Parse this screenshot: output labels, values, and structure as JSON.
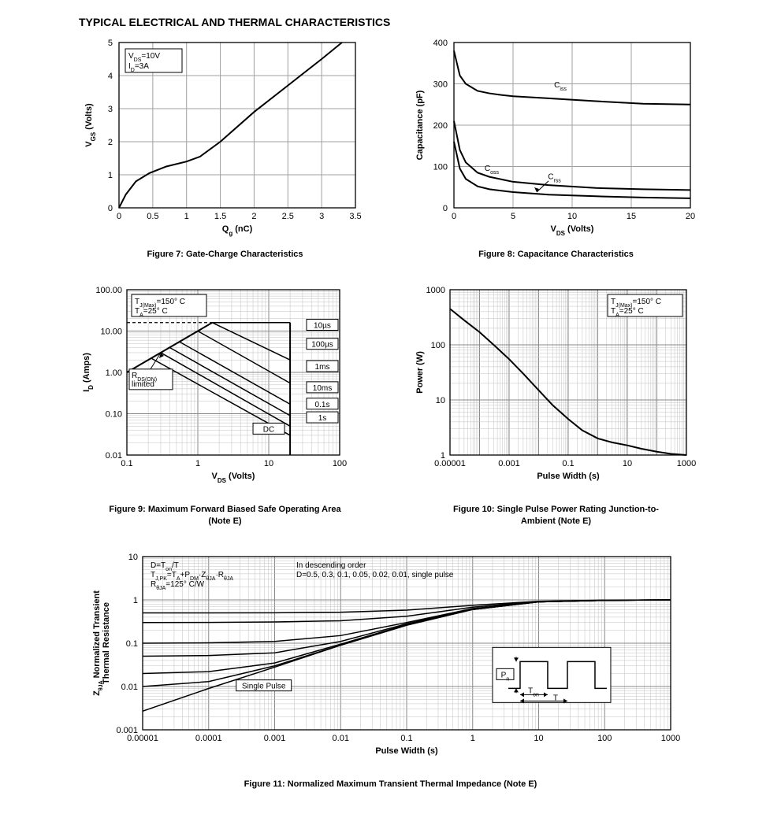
{
  "page": {
    "title": "TYPICAL ELECTRICAL AND THERMAL CHARACTERISTICS"
  },
  "fig7": {
    "type": "line",
    "caption": "Figure 7: Gate-Charge Characteristics",
    "xlabel": "Qg (nC)",
    "ylabel": "VGS (Volts)",
    "xlim": [
      0,
      3.5
    ],
    "ylim": [
      0,
      5
    ],
    "xticks": [
      0,
      0.5,
      1,
      1.5,
      2,
      2.5,
      3,
      3.5
    ],
    "yticks": [
      0,
      1,
      2,
      3,
      4,
      5
    ],
    "annotation": [
      "VDS=10V",
      "ID=3A"
    ],
    "curve": [
      [
        0,
        0
      ],
      [
        0.1,
        0.4
      ],
      [
        0.25,
        0.8
      ],
      [
        0.45,
        1.05
      ],
      [
        0.7,
        1.25
      ],
      [
        1.0,
        1.4
      ],
      [
        1.2,
        1.55
      ],
      [
        1.5,
        2.0
      ],
      [
        2.0,
        2.9
      ],
      [
        2.5,
        3.7
      ],
      [
        3.0,
        4.5
      ],
      [
        3.3,
        5.0
      ]
    ],
    "colors": {
      "bg": "#ffffff",
      "grid": "#a0a0a0",
      "curve": "#000000",
      "text": "#000000"
    }
  },
  "fig8": {
    "type": "line",
    "caption": "Figure 8: Capacitance Characteristics",
    "xlabel": "VDS (Volts)",
    "ylabel": "Capacitance (pF)",
    "xlim": [
      0,
      20
    ],
    "ylim": [
      0,
      400
    ],
    "xticks": [
      0,
      5,
      10,
      15,
      20
    ],
    "yticks": [
      0,
      100,
      200,
      300,
      400
    ],
    "series": {
      "Ciss": [
        [
          0,
          380
        ],
        [
          0.5,
          320
        ],
        [
          1,
          300
        ],
        [
          2,
          283
        ],
        [
          3,
          277
        ],
        [
          4,
          273
        ],
        [
          5,
          270
        ],
        [
          8,
          265
        ],
        [
          12,
          258
        ],
        [
          16,
          252
        ],
        [
          20,
          250
        ]
      ],
      "Coss": [
        [
          0,
          210
        ],
        [
          0.5,
          140
        ],
        [
          1,
          110
        ],
        [
          2,
          85
        ],
        [
          3,
          75
        ],
        [
          5,
          63
        ],
        [
          8,
          55
        ],
        [
          12,
          48
        ],
        [
          16,
          45
        ],
        [
          20,
          43
        ]
      ],
      "Crss": [
        [
          0,
          160
        ],
        [
          0.5,
          95
        ],
        [
          1,
          70
        ],
        [
          2,
          52
        ],
        [
          3,
          45
        ],
        [
          5,
          38
        ],
        [
          8,
          32
        ],
        [
          12,
          28
        ],
        [
          16,
          25
        ],
        [
          20,
          23
        ]
      ]
    },
    "labels": {
      "Ciss": "Ciss",
      "Coss": "Coss",
      "Crss": "Crss"
    },
    "colors": {
      "bg": "#ffffff",
      "grid": "#a0a0a0",
      "curve": "#000000",
      "text": "#000000"
    }
  },
  "fig9": {
    "type": "loglog",
    "caption": "Figure 9: Maximum Forward Biased Safe Operating Area (Note E)",
    "xlabel": "VDS (Volts)",
    "ylabel": "ID (Amps)",
    "xlim": [
      0.1,
      100
    ],
    "ylim": [
      0.01,
      100
    ],
    "xticks": [
      0.1,
      1,
      10,
      100
    ],
    "yticks": [
      0.01,
      0.1,
      1,
      10,
      100
    ],
    "ytick_labels": [
      "0.01",
      "0.10",
      "1.00",
      "10.00",
      "100.00"
    ],
    "annotation": [
      "TJ(Max)=150° C",
      "TA=25° C"
    ],
    "rds_label": "RDS(ON) limited",
    "pulse_labels": [
      "10µs",
      "100µs",
      "1ms",
      "10ms",
      "0.1s",
      "1s",
      "DC"
    ],
    "rds_line": [
      [
        0.1,
        1.0
      ],
      [
        1.6,
        16
      ]
    ],
    "vmax": 20,
    "curves": {
      "10us": [
        [
          1.6,
          16
        ],
        [
          20,
          16
        ]
      ],
      "100us": [
        [
          1.6,
          16
        ],
        [
          20,
          2.0
        ]
      ],
      "1ms": [
        [
          1.0,
          10
        ],
        [
          20,
          0.55
        ]
      ],
      "10ms": [
        [
          0.55,
          5.5
        ],
        [
          20,
          0.17
        ]
      ],
      "0.1s": [
        [
          0.4,
          4.0
        ],
        [
          20,
          0.09
        ]
      ],
      "1s": [
        [
          0.3,
          3.0
        ],
        [
          20,
          0.05
        ]
      ],
      "DC": [
        [
          0.22,
          2.2
        ],
        [
          20,
          0.03
        ]
      ]
    },
    "colors": {
      "bg": "#ffffff",
      "grid": "#a0a0a0",
      "curve": "#000000",
      "text": "#000000"
    }
  },
  "fig10": {
    "type": "loglog",
    "caption": "Figure 10: Single Pulse Power Rating Junction-to-Ambient (Note E)",
    "xlabel": "Pulse Width (s)",
    "ylabel": "Power (W)",
    "xlim": [
      1e-05,
      1000
    ],
    "ylim": [
      1,
      1000
    ],
    "xticks": [
      1e-05,
      0.001,
      0.1,
      10,
      1000
    ],
    "xtick_labels": [
      "0.00001",
      "0.001",
      "0.1",
      "10",
      "1000"
    ],
    "yticks": [
      1,
      10,
      100,
      1000
    ],
    "annotation": [
      "TJ(Max)=150° C",
      "TA=25° C"
    ],
    "curve": [
      [
        1e-05,
        450
      ],
      [
        3e-05,
        280
      ],
      [
        0.0001,
        170
      ],
      [
        0.0003,
        100
      ],
      [
        0.001,
        55
      ],
      [
        0.003,
        30
      ],
      [
        0.01,
        15
      ],
      [
        0.03,
        8
      ],
      [
        0.1,
        4.5
      ],
      [
        0.3,
        2.8
      ],
      [
        1,
        2.0
      ],
      [
        3,
        1.7
      ],
      [
        10,
        1.5
      ],
      [
        30,
        1.3
      ],
      [
        100,
        1.15
      ],
      [
        300,
        1.05
      ],
      [
        1000,
        1.0
      ]
    ],
    "colors": {
      "bg": "#ffffff",
      "grid": "#a0a0a0",
      "curve": "#000000",
      "text": "#000000"
    }
  },
  "fig11": {
    "type": "loglog",
    "caption": "Figure 11: Normalized Maximum Transient Thermal Impedance (Note E)",
    "xlabel": "Pulse Width (s)",
    "ylabel": "ZθJA Normalized Transient Thermal Resistance",
    "xlim": [
      1e-05,
      1000
    ],
    "ylim": [
      0.001,
      10
    ],
    "xticks": [
      1e-05,
      0.0001,
      0.001,
      0.01,
      0.1,
      1,
      10,
      100,
      1000
    ],
    "xtick_labels": [
      "0.00001",
      "0.0001",
      "0.001",
      "0.01",
      "0.1",
      "1",
      "10",
      "100",
      "1000"
    ],
    "yticks": [
      0.001,
      0.01,
      0.1,
      1,
      10
    ],
    "annotation_left": [
      "D=Ton/T",
      "TJ,PK=TA+PDM·ZθJA·RθJA",
      "RθJA=125° C/W"
    ],
    "annotation_right": [
      "In descending order",
      "D=0.5, 0.3, 0.1, 0.05, 0.02, 0.01, single pulse"
    ],
    "single_pulse_label": "Single Pulse",
    "duty_values": [
      0.5,
      0.3,
      0.1,
      0.05,
      0.02,
      0.01
    ],
    "curves": {
      "single": [
        [
          1e-05,
          0.0027
        ],
        [
          0.0001,
          0.009
        ],
        [
          0.001,
          0.028
        ],
        [
          0.01,
          0.09
        ],
        [
          0.1,
          0.26
        ],
        [
          1,
          0.6
        ],
        [
          10,
          0.9
        ],
        [
          100,
          0.98
        ],
        [
          1000,
          1.0
        ]
      ],
      "d001": [
        [
          1e-05,
          0.01
        ],
        [
          0.0001,
          0.013
        ],
        [
          0.001,
          0.03
        ],
        [
          0.01,
          0.09
        ],
        [
          0.1,
          0.26
        ],
        [
          1,
          0.6
        ],
        [
          10,
          0.9
        ],
        [
          100,
          0.98
        ],
        [
          1000,
          1.0
        ]
      ],
      "d002": [
        [
          1e-05,
          0.02
        ],
        [
          0.0001,
          0.022
        ],
        [
          0.001,
          0.035
        ],
        [
          0.01,
          0.095
        ],
        [
          0.1,
          0.27
        ],
        [
          1,
          0.6
        ],
        [
          10,
          0.9
        ],
        [
          100,
          0.98
        ],
        [
          1000,
          1.0
        ]
      ],
      "d005": [
        [
          1e-05,
          0.05
        ],
        [
          0.0001,
          0.052
        ],
        [
          0.001,
          0.06
        ],
        [
          0.01,
          0.11
        ],
        [
          0.1,
          0.28
        ],
        [
          1,
          0.62
        ],
        [
          10,
          0.9
        ],
        [
          100,
          0.98
        ],
        [
          1000,
          1.0
        ]
      ],
      "d01": [
        [
          1e-05,
          0.1
        ],
        [
          0.0001,
          0.102
        ],
        [
          0.001,
          0.11
        ],
        [
          0.01,
          0.15
        ],
        [
          0.1,
          0.3
        ],
        [
          1,
          0.63
        ],
        [
          10,
          0.9
        ],
        [
          100,
          0.98
        ],
        [
          1000,
          1.0
        ]
      ],
      "d03": [
        [
          1e-05,
          0.3
        ],
        [
          0.0001,
          0.302
        ],
        [
          0.001,
          0.31
        ],
        [
          0.01,
          0.33
        ],
        [
          0.1,
          0.42
        ],
        [
          1,
          0.68
        ],
        [
          10,
          0.92
        ],
        [
          100,
          0.98
        ],
        [
          1000,
          1.0
        ]
      ],
      "d05": [
        [
          1e-05,
          0.5
        ],
        [
          0.0001,
          0.501
        ],
        [
          0.001,
          0.505
        ],
        [
          0.01,
          0.52
        ],
        [
          0.1,
          0.58
        ],
        [
          1,
          0.75
        ],
        [
          10,
          0.93
        ],
        [
          100,
          0.99
        ],
        [
          1000,
          1.0
        ]
      ]
    },
    "waveform_labels": {
      "Pn": "Pn",
      "Ton": "Ton",
      "T": "T"
    },
    "colors": {
      "bg": "#ffffff",
      "grid": "#a0a0a0",
      "curve": "#000000",
      "text": "#000000"
    }
  }
}
